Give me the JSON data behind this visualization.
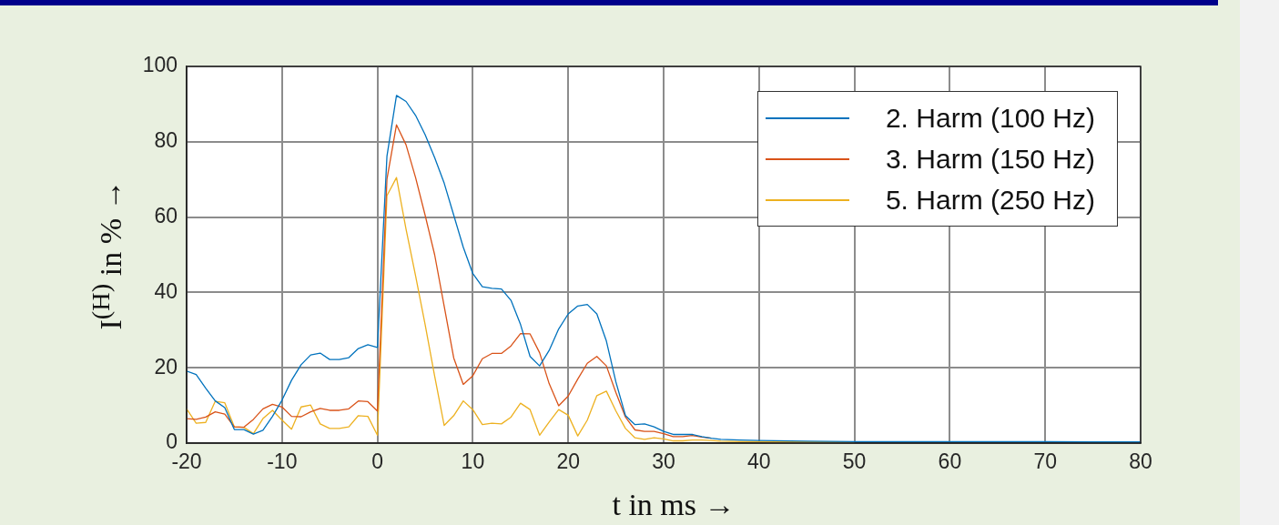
{
  "chart_data": {
    "type": "line",
    "xlabel": "t in ms →",
    "ylabel": "I$^{(H)}$ in % →",
    "x": [
      -20,
      -19,
      -18,
      -17,
      -16,
      -15,
      -14,
      -13,
      -12,
      -11,
      -10,
      -9,
      -8,
      -7,
      -6,
      -5,
      -4,
      -3,
      -2,
      -1,
      0,
      1,
      2,
      3,
      4,
      5,
      6,
      7,
      8,
      9,
      10,
      11,
      12,
      13,
      14,
      15,
      16,
      17,
      18,
      19,
      20,
      21,
      22,
      23,
      24,
      25,
      26,
      27,
      28,
      29,
      30,
      31,
      32,
      33,
      34,
      35,
      36,
      38,
      40,
      45,
      50,
      55,
      60,
      65,
      70,
      75,
      80
    ],
    "series": [
      {
        "name": "2. Harm (100 Hz)",
        "color": "#0072bd",
        "values": [
          19.1,
          18.2,
          14.6,
          11.2,
          9.4,
          3.6,
          3.6,
          2.4,
          3.4,
          7.1,
          11.4,
          16.7,
          20.8,
          23.4,
          23.9,
          22.2,
          22.2,
          22.7,
          25.1,
          26.1,
          25.4,
          76.2,
          92.3,
          90.7,
          87,
          81.9,
          75.8,
          69,
          60.5,
          52,
          45,
          41.5,
          41.1,
          40.9,
          37.9,
          31.5,
          23,
          20.5,
          24.6,
          30.3,
          34.3,
          36.4,
          36.8,
          34.3,
          27.1,
          16.2,
          7.3,
          4.9,
          5.1,
          4.3,
          3.1,
          2.3,
          2.3,
          2.3,
          1.7,
          1.3,
          1.0,
          0.8,
          0.7,
          0.5,
          0.4,
          0.4,
          0.4,
          0.4,
          0.4,
          0.3,
          0.3
        ]
      },
      {
        "name": "3. Harm (150 Hz)",
        "color": "#d95319",
        "values": [
          6.5,
          6.3,
          6.9,
          8.3,
          7.7,
          4.3,
          4.2,
          6.3,
          9.1,
          10.3,
          9.6,
          7.1,
          7,
          8.3,
          9.2,
          8.7,
          8.7,
          9.1,
          11.2,
          11,
          8.5,
          70.1,
          84.5,
          79.2,
          70.5,
          60.5,
          50,
          36.3,
          22.6,
          15.6,
          17.9,
          22.4,
          23.8,
          23.8,
          25.8,
          29.1,
          29,
          24,
          15.8,
          9.9,
          12.5,
          17,
          21.2,
          23,
          20.5,
          13.4,
          6.9,
          3.5,
          3.1,
          3.1,
          2.5,
          1.7,
          1.7,
          2.0,
          1.6,
          1.3,
          null,
          null,
          null,
          null,
          null,
          null,
          null,
          null,
          null,
          null,
          null
        ]
      },
      {
        "name": "5. Harm (250 Hz)",
        "color": "#edb120",
        "values": [
          9.1,
          5.3,
          5.5,
          11.1,
          10.7,
          4.3,
          4.2,
          2.5,
          6.5,
          8.7,
          6.1,
          3.7,
          9.6,
          10.1,
          5.1,
          3.9,
          3.9,
          4.3,
          7.3,
          7.1,
          2.1,
          65.7,
          70.5,
          56.8,
          44.4,
          31.5,
          17.8,
          4.7,
          7.3,
          11.2,
          8.9,
          4.9,
          5.3,
          5.1,
          6.9,
          10.6,
          8.9,
          2.1,
          5.6,
          8.9,
          7.4,
          1.9,
          6.1,
          12.6,
          13.8,
          8.5,
          3.9,
          1.4,
          1.0,
          1.4,
          1.1,
          0.6,
          0.6,
          0.8,
          0.8,
          0.7,
          0.5,
          0.4,
          0.4,
          0.3,
          0.3,
          null,
          null,
          null,
          null,
          null,
          null
        ]
      }
    ],
    "xlim": [
      -20,
      80
    ],
    "xticks": [
      -20,
      -10,
      0,
      10,
      20,
      30,
      40,
      50,
      60,
      70,
      80
    ],
    "ylim": [
      0,
      100
    ],
    "yticks": [
      0,
      20,
      40,
      60,
      80,
      100
    ],
    "grid": true,
    "legend": "top right",
    "marker": "none",
    "line_style": "solid"
  }
}
